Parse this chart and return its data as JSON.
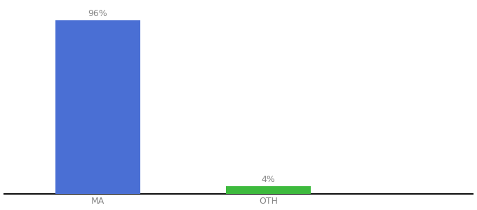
{
  "categories": [
    "MA",
    "OTH"
  ],
  "values": [
    96,
    4
  ],
  "bar_colors": [
    "#4A6FD4",
    "#3dba3d"
  ],
  "label_texts": [
    "96%",
    "4%"
  ],
  "background_color": "#ffffff",
  "text_color": "#888888",
  "label_color": "#888888",
  "ylim": [
    0,
    105
  ],
  "bar_width": 0.5,
  "figsize": [
    6.8,
    3.0
  ],
  "dpi": 100,
  "axis_line_color": "#111111",
  "tick_label_fontsize": 9,
  "value_label_fontsize": 9,
  "x_positions": [
    0,
    1
  ],
  "xlim": [
    -0.55,
    2.2
  ]
}
